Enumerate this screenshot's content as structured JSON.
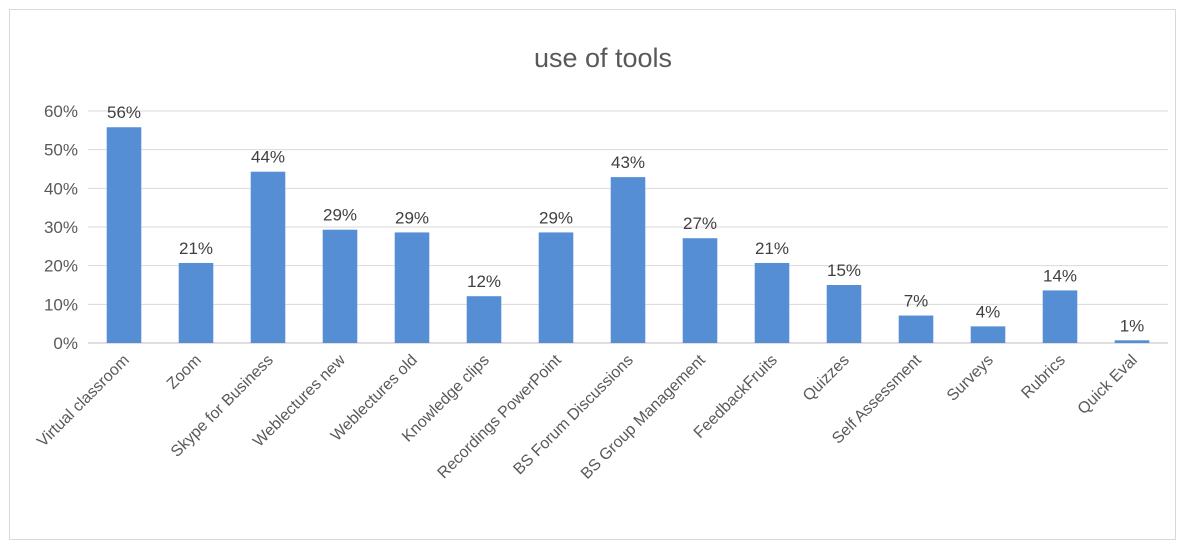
{
  "chart_data": {
    "type": "bar",
    "title": "use of tools",
    "xlabel": "",
    "ylabel": "",
    "ylim": [
      0,
      0.6
    ],
    "y_ticks": [
      "0%",
      "10%",
      "20%",
      "30%",
      "40%",
      "50%",
      "60%"
    ],
    "grid": true,
    "legend": "none",
    "bar_color": "#558ED5",
    "categories": [
      "Virtual classroom",
      "Zoom",
      "Skype for Business",
      "Weblectures new",
      "Weblectures old",
      "Knowledge clips",
      "Recordings PowerPoint",
      "BS Forum Discussions",
      "BS Group Management",
      "FeedbackFruits",
      "Quizzes",
      "Self Assessment",
      "Surveys",
      "Rubrics",
      "Quick Eval"
    ],
    "values": [
      0.558,
      0.207,
      0.443,
      0.293,
      0.286,
      0.121,
      0.286,
      0.429,
      0.271,
      0.207,
      0.15,
      0.071,
      0.043,
      0.136,
      0.007
    ],
    "data_labels": [
      "56%",
      "21%",
      "44%",
      "29%",
      "29%",
      "12%",
      "29%",
      "43%",
      "27%",
      "21%",
      "15%",
      "7%",
      "4%",
      "14%",
      "1%"
    ]
  }
}
